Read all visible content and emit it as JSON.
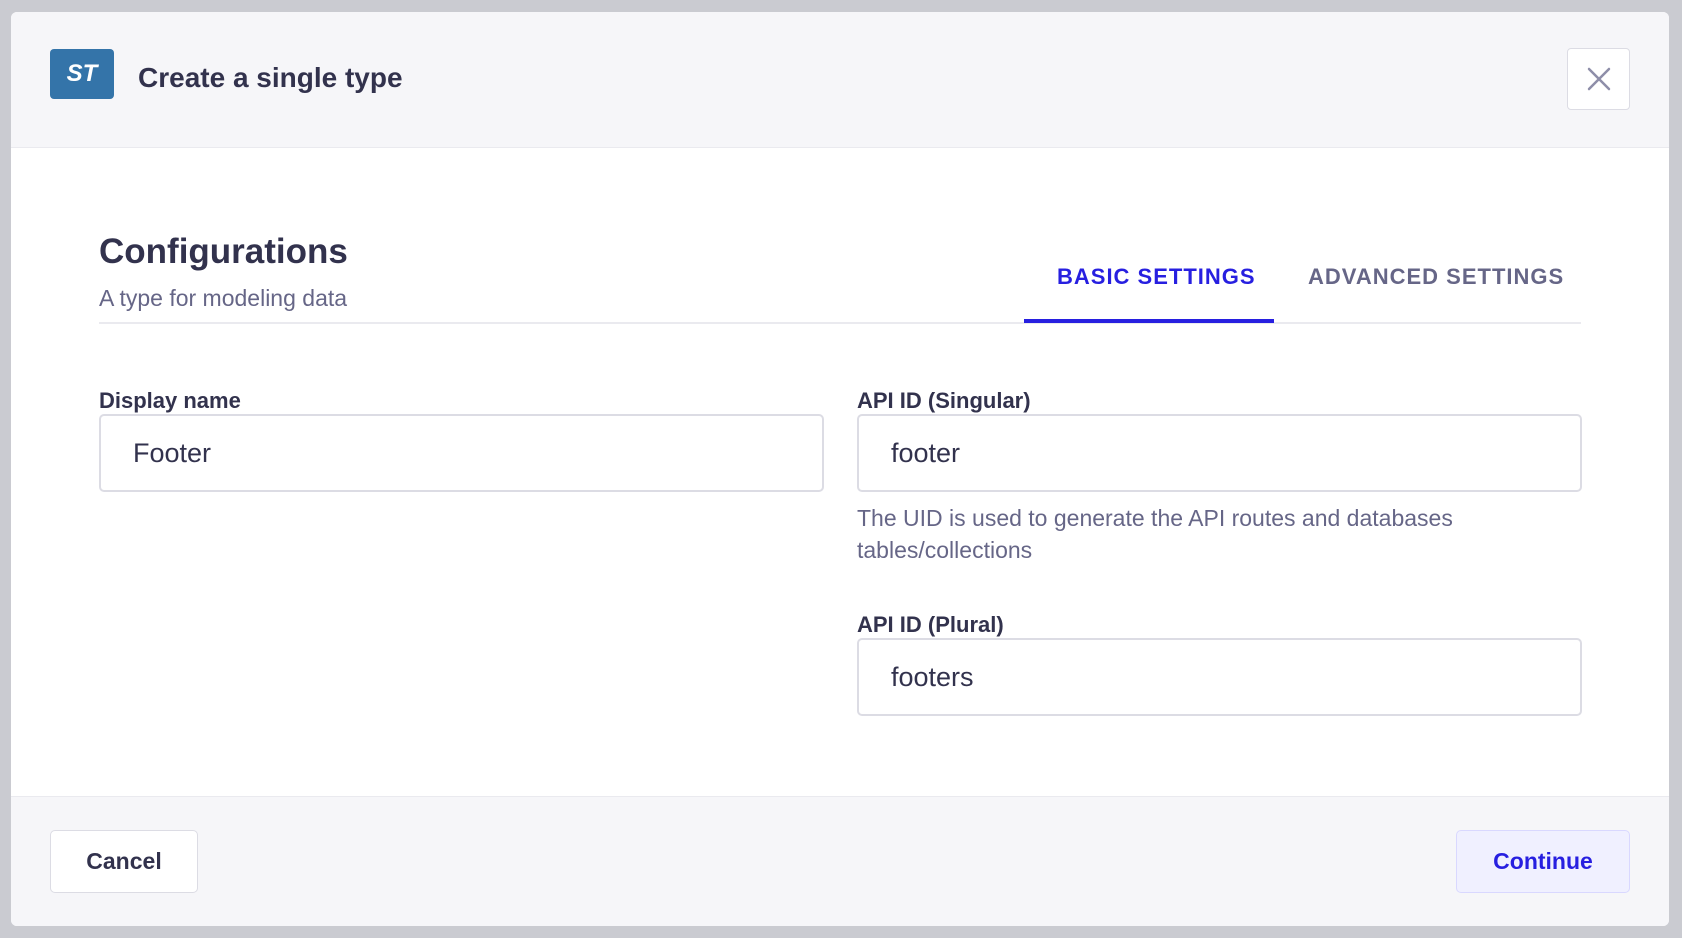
{
  "modal": {
    "badge": "ST",
    "title": "Create a single type",
    "close_icon": "close-icon"
  },
  "section": {
    "heading": "Configurations",
    "subtitle": "A type for modeling data"
  },
  "tabs": [
    {
      "label": "BASIC SETTINGS",
      "active": true
    },
    {
      "label": "ADVANCED SETTINGS",
      "active": false
    }
  ],
  "fields": {
    "display_name": {
      "label": "Display name",
      "value": "Footer"
    },
    "api_singular": {
      "label": "API ID (Singular)",
      "value": "footer",
      "help": "The UID is used to generate the API routes and databases tables/collections"
    },
    "api_plural": {
      "label": "API ID (Plural)",
      "value": "footers"
    }
  },
  "footer": {
    "cancel": "Cancel",
    "continue": "Continue"
  },
  "colors": {
    "accent": "#271fe0",
    "badge": "#3474a9"
  }
}
